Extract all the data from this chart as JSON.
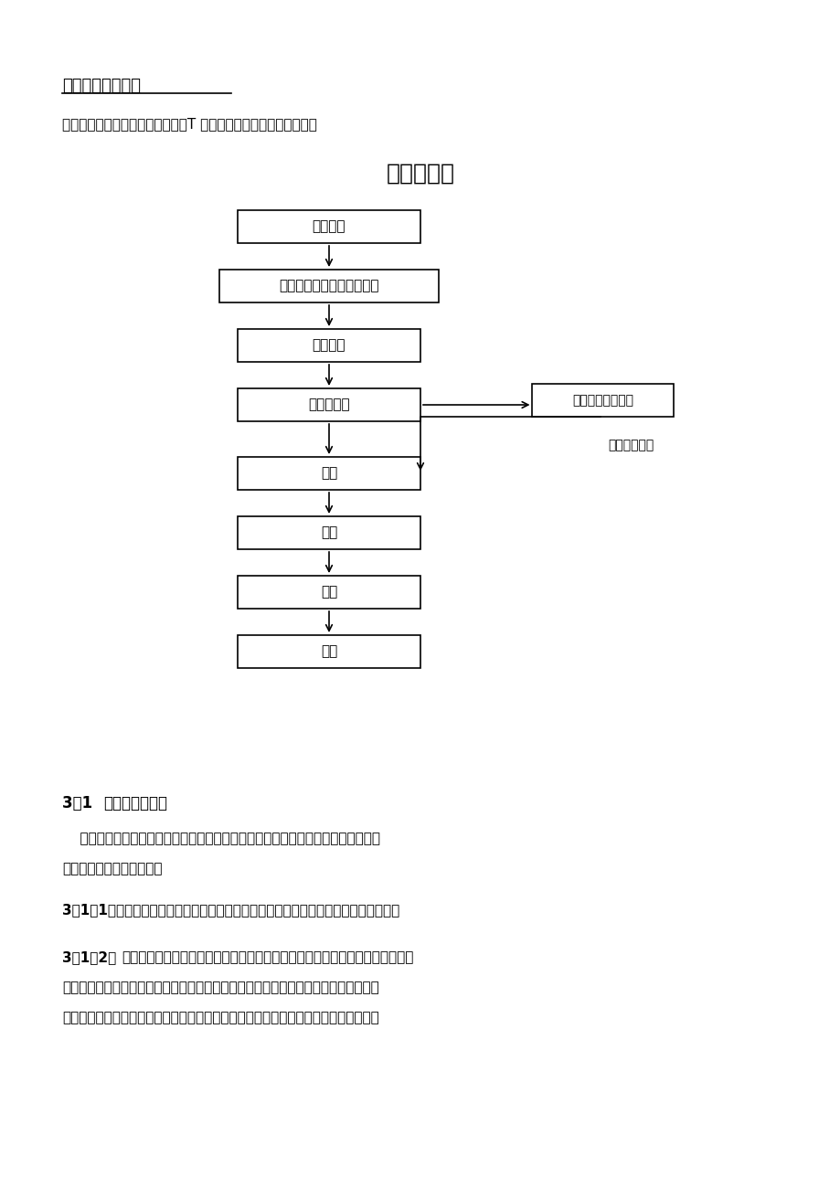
{
  "bg_color": "#ffffff",
  "section_title": "三、施工工艺流程",
  "intro_text": "同所有后张法预应力预制梁一样，T 梁预制的施工工艺流程如下图：",
  "flowchart_title": "工艺流程图",
  "flow_boxes": [
    "施工准备",
    "钢筋制安及预应力管道就位",
    "模板安装",
    "混凝土浇筑",
    "张拉",
    "压浆",
    "封端",
    "移梁"
  ],
  "side_box1": "制作随梁养护试件",
  "side_box2_label": "试压强度合格",
  "section31_title": "3．1 钢筋制作及安装",
  "para1": "    在一切准备工作就绪后，便可以进行钢筋的制作与安装工作。在钢筋制安工作中，\n我们应注意以下几个问题：",
  "para311": "3．1．1、在整个施工过程中，都应该严格遵守《公路桥涵施工技术规范》的所有要求。",
  "para312_bold": "3．1．2、",
  "para312_rest": "对于预应力构件来说，预应力筋才是真正的主筋，其他钢筋的作用主要是将混凝\n土形成一个完整结构，在构件受力并产生非主截面应力时，约束应力切向裂纹的发展。\n预应力管道位置与钢筋位置的冲突是个无法在设计中克服的问题，只有在施工中才能解"
}
